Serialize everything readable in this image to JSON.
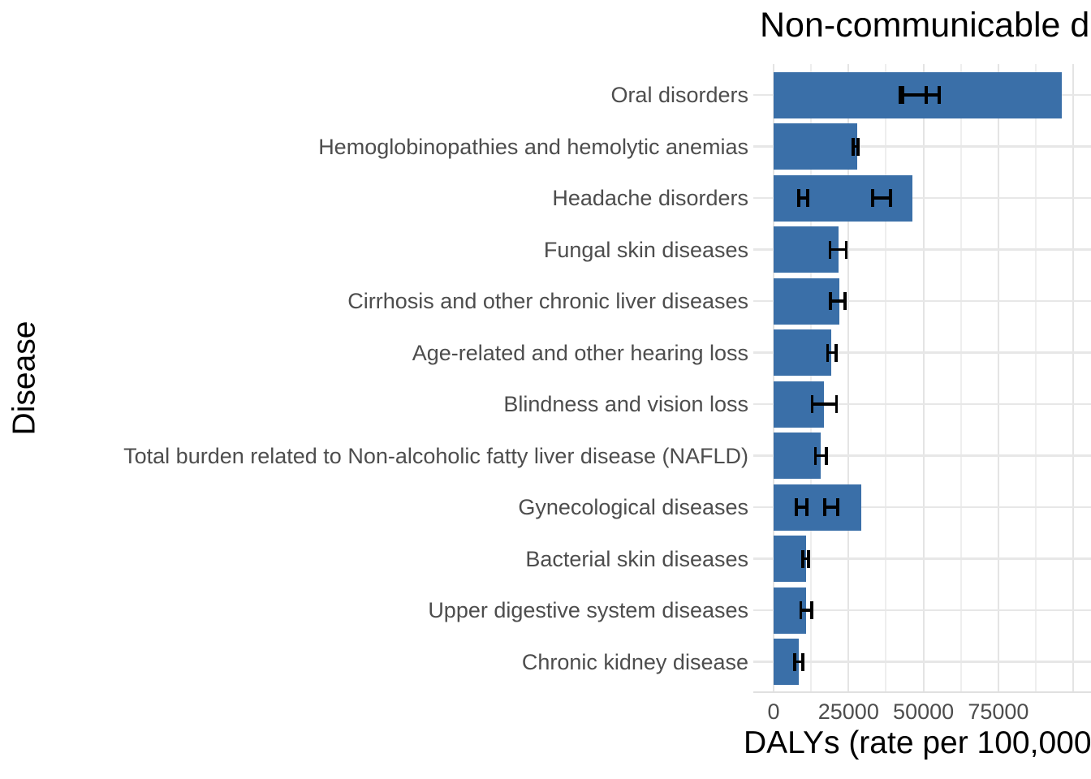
{
  "chart_data": {
    "type": "bar",
    "orientation": "horizontal",
    "title": "Non-communicable d",
    "xlabel": "DALYs (rate per 100,000)",
    "ylabel": "Disease",
    "xlim": [
      0,
      105000
    ],
    "grid": true,
    "legend": "none",
    "x_ticks": [
      0,
      25000,
      50000,
      75000
    ],
    "x_tick_labels": [
      "0",
      "25000",
      "50000",
      "75000"
    ],
    "x_gridlines_major": [
      0,
      25000,
      50000,
      75000,
      100000
    ],
    "x_gridlines_minor": [
      12500,
      37500,
      62500,
      87500
    ],
    "categories": [
      {
        "label": "Oral disorders",
        "value": 96200,
        "error_bars": [
          [
            42300,
            50900
          ],
          [
            43100,
            55300
          ]
        ]
      },
      {
        "label": "Hemoglobinopathies and hemolytic anemias",
        "value": 27900,
        "error_bars": [
          [
            26600,
            28200
          ]
        ]
      },
      {
        "label": "Headache disorders",
        "value": 46300,
        "error_bars": [
          [
            8400,
            11400
          ],
          [
            33000,
            39000
          ]
        ]
      },
      {
        "label": "Fungal skin diseases",
        "value": 21600,
        "error_bars": [
          [
            18800,
            24200
          ]
        ]
      },
      {
        "label": "Cirrhosis and other chronic liver diseases",
        "value": 21900,
        "error_bars": [
          [
            19000,
            23800
          ]
        ]
      },
      {
        "label": "Age-related and other hearing loss",
        "value": 19200,
        "error_bars": [
          [
            18000,
            20900
          ]
        ]
      },
      {
        "label": "Blindness and vision loss",
        "value": 16700,
        "error_bars": [
          [
            12900,
            21000
          ]
        ]
      },
      {
        "label": "Total burden related to Non-alcoholic fatty liver disease (NAFLD)",
        "value": 15700,
        "error_bars": [
          [
            14000,
            17600
          ]
        ]
      },
      {
        "label": "Gynecological diseases",
        "value": 29300,
        "error_bars": [
          [
            7600,
            11100
          ],
          [
            17100,
            21400
          ]
        ]
      },
      {
        "label": "Bacterial skin diseases",
        "value": 10900,
        "error_bars": [
          [
            9800,
            11600
          ]
        ]
      },
      {
        "label": "Upper digestive system diseases",
        "value": 10900,
        "error_bars": [
          [
            9100,
            12700
          ]
        ]
      },
      {
        "label": "Chronic kidney disease",
        "value": 8500,
        "error_bars": [
          [
            7100,
            9800
          ]
        ]
      }
    ],
    "colors": {
      "bar": "#3a6fa8",
      "error_bar": "#000000",
      "grid_major": "#e4e4e4",
      "grid_minor": "#eeeeee",
      "axis_text": "#4d4d4d",
      "title_text": "#000000",
      "background": "#ffffff"
    }
  }
}
